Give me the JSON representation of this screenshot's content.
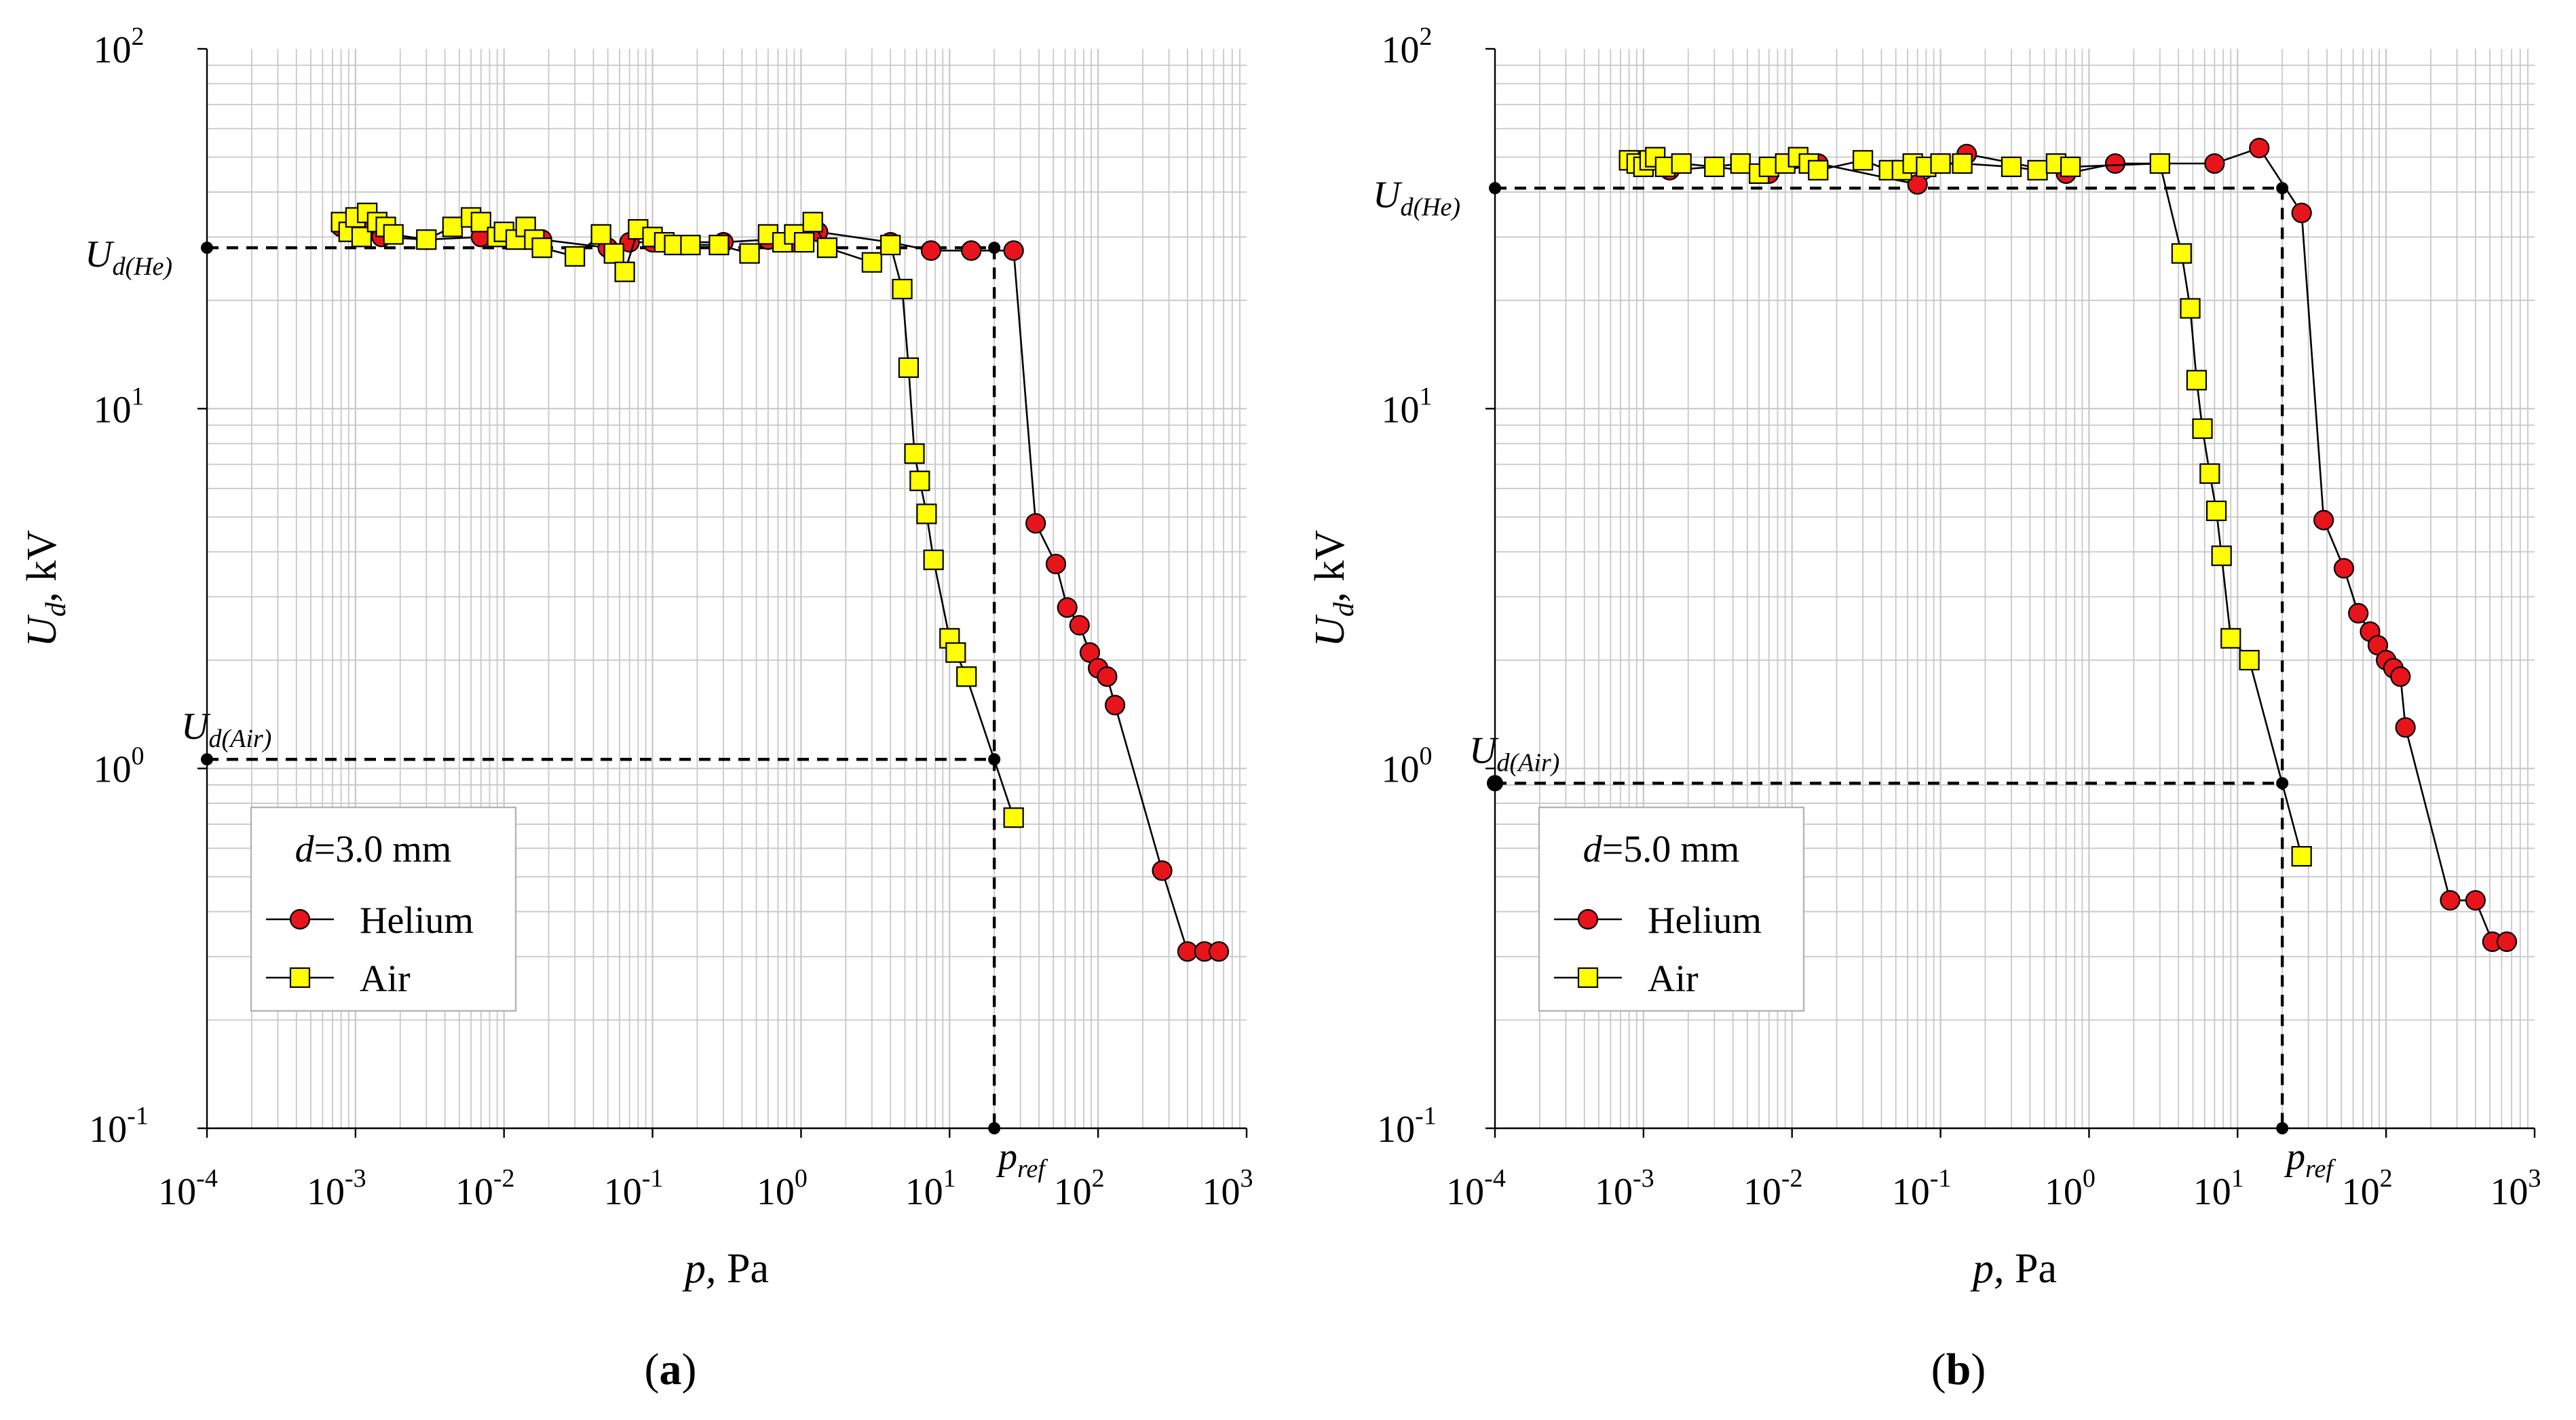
{
  "colors": {
    "helium": "#e8141c",
    "air": "#ffff00",
    "marker_edge": "#000000",
    "grid": "#c8c8c8",
    "ref_point": "#000000"
  },
  "chart_data": [
    {
      "id": "a",
      "type": "line",
      "scale": {
        "x": "log",
        "y": "log"
      },
      "xlim": [
        0.0001,
        1000
      ],
      "ylim": [
        0.1,
        100
      ],
      "grid": true,
      "xlabel": {
        "main": "p,",
        "unit": " Pa"
      },
      "ylabel": {
        "main": "U",
        "sub": "d",
        "unit": ", kV"
      },
      "x_ticks": [
        {
          "base": "10",
          "exp": "-4",
          "value": 0.0001
        },
        {
          "base": "10",
          "exp": "-3",
          "value": 0.001
        },
        {
          "base": "10",
          "exp": "-2",
          "value": 0.01
        },
        {
          "base": "10",
          "exp": "-1",
          "value": 0.1
        },
        {
          "base": "10",
          "exp": "0",
          "value": 1
        },
        {
          "base": "10",
          "exp": "1",
          "value": 10
        },
        {
          "base": "10",
          "exp": "2",
          "value": 100
        },
        {
          "base": "10",
          "exp": "3",
          "value": 1000
        }
      ],
      "y_ticks": [
        {
          "base": "10",
          "exp": "-1",
          "value": 0.1
        },
        {
          "base": "10",
          "exp": "0",
          "value": 1
        },
        {
          "base": "10",
          "exp": "1",
          "value": 10
        },
        {
          "base": "10",
          "exp": "2",
          "value": 100
        }
      ],
      "caption": {
        "open": "(",
        "letter": "a",
        "close": ")"
      },
      "legend": {
        "position": "lower-left",
        "title_var": "d",
        "title_rest": "=3.0 mm"
      },
      "series": [
        {
          "name": "Helium",
          "marker": "circle",
          "color_key": "helium",
          "x": [
            0.0008,
            0.00095,
            0.0011,
            0.0015,
            0.003,
            0.007,
            0.018,
            0.05,
            0.07,
            0.1,
            0.3,
            0.6,
            0.9,
            1.3,
            4,
            7.5,
            14,
            27,
            38,
            52,
            62,
            75,
            88,
            100,
            115,
            130,
            270,
            400,
            520,
            650
          ],
          "y": [
            32,
            31,
            31.5,
            30,
            29.5,
            30,
            29.5,
            28,
            29,
            29,
            29,
            29.5,
            29,
            31,
            29,
            27.5,
            27.5,
            27.5,
            4.8,
            3.7,
            2.8,
            2.5,
            2.1,
            1.9,
            1.8,
            1.5,
            0.52,
            0.31,
            0.31,
            0.31
          ]
        },
        {
          "name": "Air",
          "marker": "square",
          "color_key": "air",
          "x": [
            0.0008,
            0.0009,
            0.001,
            0.0011,
            0.0012,
            0.0014,
            0.0016,
            0.0018,
            0.003,
            0.0045,
            0.006,
            0.007,
            0.009,
            0.01,
            0.012,
            0.014,
            0.016,
            0.018,
            0.03,
            0.045,
            0.055,
            0.065,
            0.08,
            0.1,
            0.12,
            0.14,
            0.18,
            0.28,
            0.45,
            0.6,
            0.75,
            0.9,
            1.05,
            1.2,
            1.5,
            3,
            4,
            4.8,
            5.3,
            5.8,
            6.3,
            7,
            7.8,
            10,
            11,
            13,
            27
          ],
          "y": [
            33,
            31,
            34,
            30,
            35,
            33,
            32,
            30.5,
            29.5,
            32,
            34,
            33,
            30,
            31,
            29.5,
            32,
            29.5,
            28,
            26.5,
            30.5,
            27,
            24,
            31.5,
            30,
            29,
            28.5,
            28.5,
            28.5,
            27,
            30.5,
            29,
            30.5,
            29,
            33,
            28,
            25.5,
            28.5,
            21.5,
            13,
            7.5,
            6.3,
            5.1,
            3.8,
            2.3,
            2.1,
            1.8,
            0.73
          ]
        }
      ],
      "reference": {
        "p_ref": 20,
        "ud_he": 28,
        "ud_air": 1.06,
        "label_he": {
          "main": "U",
          "sub": "d(He)"
        },
        "label_air": {
          "main": "U",
          "sub": "d(Air)"
        },
        "label_pref": {
          "main": "p",
          "sub": "ref"
        }
      }
    },
    {
      "id": "b",
      "type": "line",
      "scale": {
        "x": "log",
        "y": "log"
      },
      "xlim": [
        0.0001,
        1000
      ],
      "ylim": [
        0.1,
        100
      ],
      "grid": true,
      "xlabel": {
        "main": "p,",
        "unit": " Pa"
      },
      "ylabel": {
        "main": "U",
        "sub": "d",
        "unit": ", kV"
      },
      "x_ticks": [
        {
          "base": "10",
          "exp": "-4",
          "value": 0.0001
        },
        {
          "base": "10",
          "exp": "-3",
          "value": 0.001
        },
        {
          "base": "10",
          "exp": "-2",
          "value": 0.01
        },
        {
          "base": "10",
          "exp": "-1",
          "value": 0.1
        },
        {
          "base": "10",
          "exp": "0",
          "value": 1
        },
        {
          "base": "10",
          "exp": "1",
          "value": 10
        },
        {
          "base": "10",
          "exp": "2",
          "value": 100
        },
        {
          "base": "10",
          "exp": "3",
          "value": 1000
        }
      ],
      "y_ticks": [
        {
          "base": "10",
          "exp": "-1",
          "value": 0.1
        },
        {
          "base": "10",
          "exp": "0",
          "value": 1
        },
        {
          "base": "10",
          "exp": "1",
          "value": 10
        },
        {
          "base": "10",
          "exp": "2",
          "value": 100
        }
      ],
      "caption": {
        "open": "(",
        "letter": "b",
        "close": ")"
      },
      "legend": {
        "position": "lower-left",
        "title_var": "d",
        "title_rest": "=5.0 mm"
      },
      "series": [
        {
          "name": "Helium",
          "marker": "circle",
          "color_key": "helium",
          "x": [
            0.0008,
            0.001,
            0.0015,
            0.003,
            0.007,
            0.015,
            0.07,
            0.15,
            0.7,
            1.5,
            7,
            14,
            27,
            38,
            52,
            65,
            78,
            88,
            100,
            112,
            125,
            135,
            270,
            400,
            520,
            650
          ],
          "y": [
            49,
            47,
            46,
            47,
            45,
            48,
            42,
            51,
            45,
            48,
            48,
            53,
            35,
            4.9,
            3.6,
            2.7,
            2.4,
            2.2,
            2.0,
            1.9,
            1.8,
            1.3,
            0.43,
            0.43,
            0.33,
            0.33
          ]
        },
        {
          "name": "Air",
          "marker": "square",
          "color_key": "air",
          "x": [
            0.0008,
            0.0009,
            0.001,
            0.0011,
            0.0012,
            0.0014,
            0.0018,
            0.003,
            0.0045,
            0.006,
            0.007,
            0.009,
            0.011,
            0.013,
            0.015,
            0.03,
            0.045,
            0.055,
            0.065,
            0.08,
            0.1,
            0.14,
            0.3,
            0.45,
            0.6,
            0.75,
            3,
            4.2,
            4.8,
            5.3,
            5.8,
            6.5,
            7.2,
            7.8,
            9,
            12,
            27
          ],
          "y": [
            49,
            48,
            47,
            49,
            50,
            47,
            48,
            47,
            48,
            45,
            47,
            48,
            50,
            48,
            46,
            49,
            46,
            46,
            48,
            47,
            48,
            48,
            47,
            46,
            48,
            47,
            48,
            27,
            19,
            12,
            8.8,
            6.6,
            5.2,
            3.9,
            2.3,
            2.0,
            0.57
          ]
        }
      ],
      "reference": {
        "p_ref": 20,
        "ud_he": 41,
        "ud_air": 0.91,
        "label_he": {
          "main": "U",
          "sub": "d(He)"
        },
        "label_air": {
          "main": "U",
          "sub": "d(Air)"
        },
        "label_pref": {
          "main": "p",
          "sub": "ref"
        }
      }
    }
  ]
}
